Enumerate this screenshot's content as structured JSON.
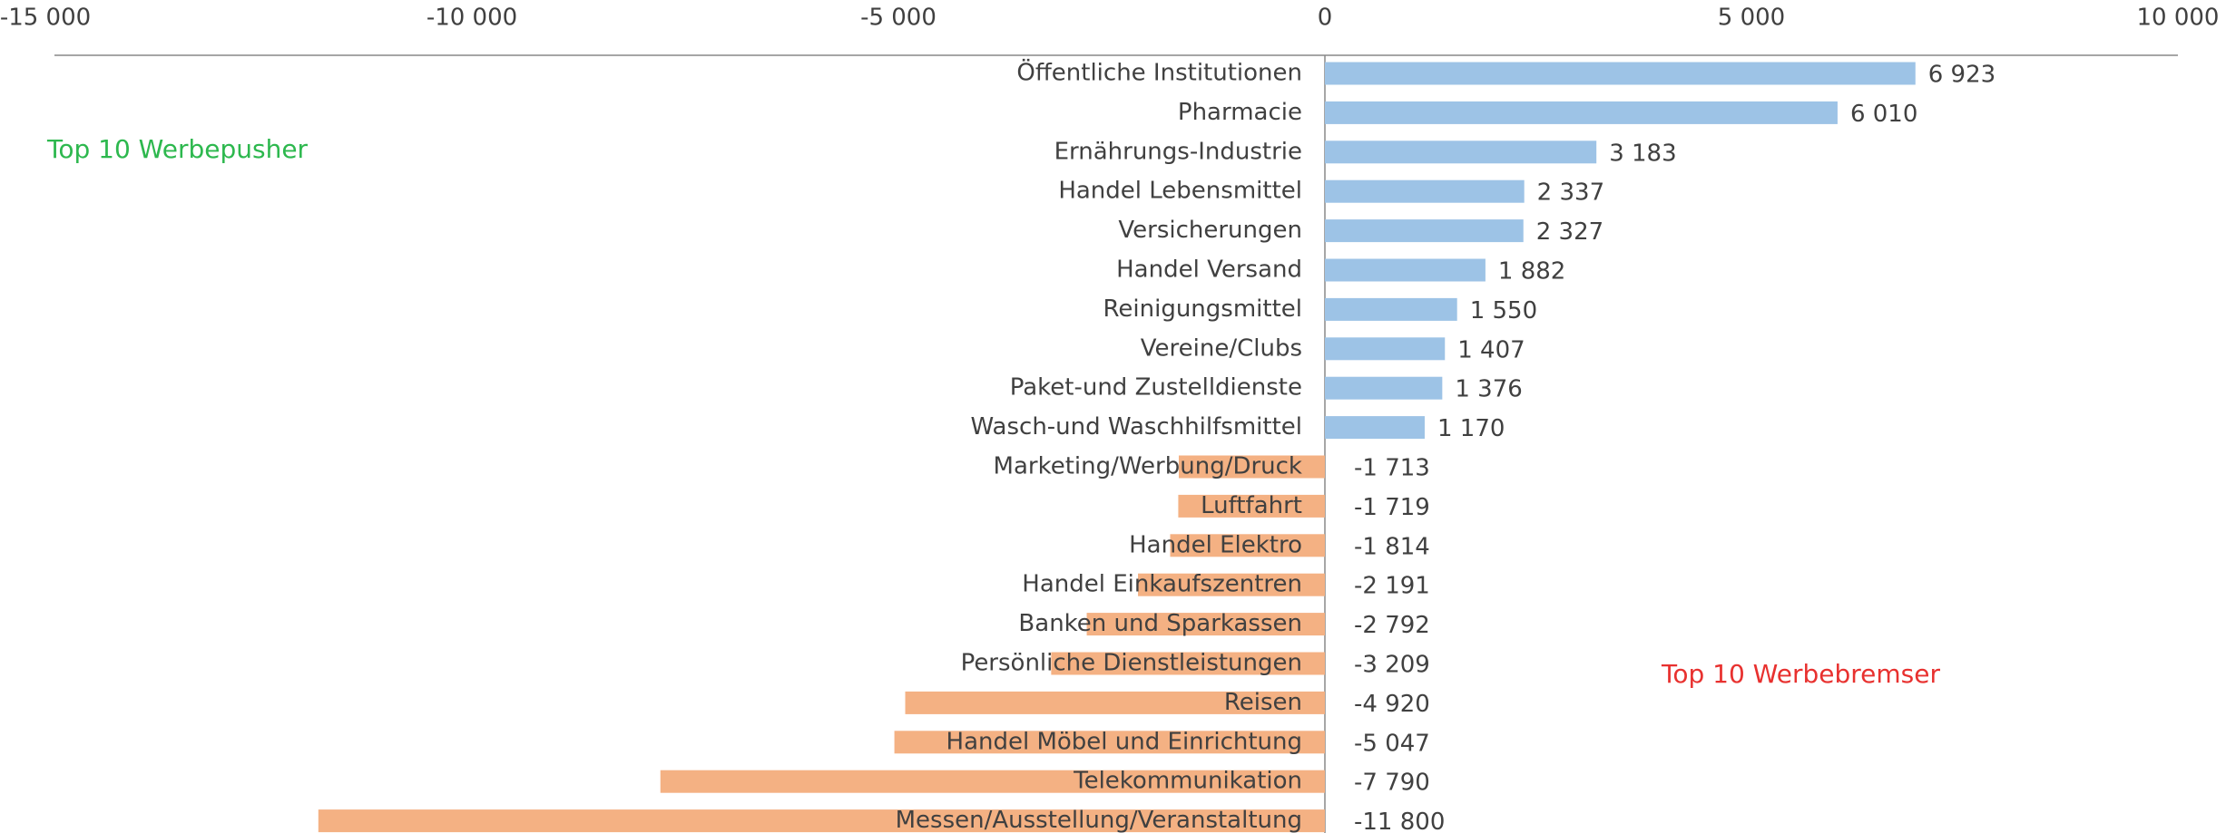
{
  "chart_data": {
    "type": "barh",
    "categories": [
      "Öffentliche Institutionen",
      "Pharmacie",
      "Ernährungs-Industrie",
      "Handel Lebensmittel",
      "Versicherungen",
      "Handel Versand",
      "Reinigungsmittel",
      "Vereine/Clubs",
      "Paket-und Zustelldienste",
      "Wasch-und Waschhilfsmittel",
      "Marketing/Werbung/Druck",
      "Luftfahrt",
      "Handel Elektro",
      "Handel Einkaufszentren",
      "Banken und Sparkassen",
      "Persönliche Dienstleistungen",
      "Reisen",
      "Handel Möbel und Einrichtung",
      "Telekommunikation",
      "Messen/Ausstellung/Veranstaltung"
    ],
    "values": [
      6923,
      6010,
      3183,
      2337,
      2327,
      1882,
      1550,
      1407,
      1376,
      1170,
      -1713,
      -1719,
      -1814,
      -2191,
      -2792,
      -3209,
      -4920,
      -5047,
      -7790,
      -11800
    ],
    "value_labels": [
      "6 923",
      "6 010",
      "3 183",
      "2 337",
      "2 327",
      "1 882",
      "1 550",
      "1 407",
      "1 376",
      "1 170",
      "-1 713",
      "-1 719",
      "-1 814",
      "-2 191",
      "-2 792",
      "-3 209",
      "-4 920",
      "-5 047",
      "-7 790",
      "-11 800"
    ],
    "color_positive": "#9dc3e6",
    "color_negative": "#f4b183",
    "xlim": [
      -15000,
      10000
    ],
    "xticks": [
      {
        "value": -15000,
        "label": "-15 000"
      },
      {
        "value": -10000,
        "label": "-10 000"
      },
      {
        "value": -5000,
        "label": "-5 000"
      },
      0,
      {
        "value": 5000,
        "label": "5 000"
      },
      {
        "value": 10000,
        "label": "10 000"
      }
    ],
    "annotations": [
      {
        "text": "Top 10 Werbepusher",
        "color": "#2db84e"
      },
      {
        "text": "Top 10 Werbebremser",
        "color": "#e8312f"
      }
    ]
  }
}
